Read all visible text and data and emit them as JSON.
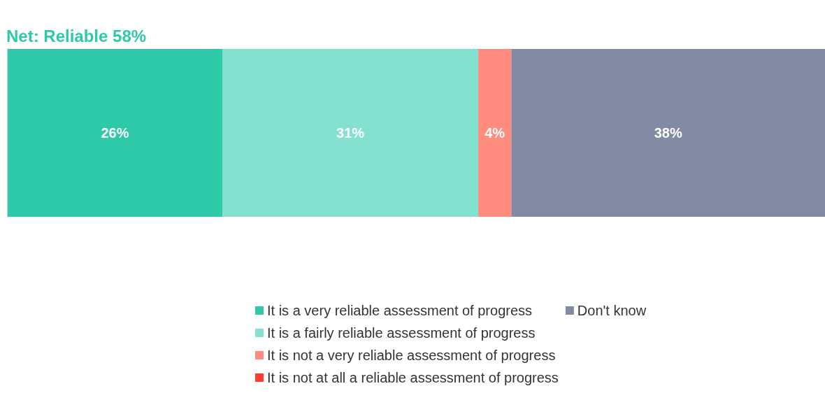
{
  "chart_data": {
    "type": "bar",
    "orientation": "horizontal",
    "stacked": true,
    "title": "Net: Reliable 58%",
    "categories": [
      null
    ],
    "legend": "bottom",
    "series": [
      {
        "name": "It is a very reliable assessment of progress",
        "color": "#2ec9a6",
        "values": [
          26
        ],
        "value_labels": [
          "26%"
        ]
      },
      {
        "name": "It is a fairly reliable assessment of progress",
        "color": "#84e1cf",
        "values": [
          31
        ],
        "value_labels": [
          "31%"
        ]
      },
      {
        "name": "It is not a very reliable assessment of progress",
        "color": "#ff8c7e",
        "values": [
          4
        ],
        "value_labels": [
          "4%"
        ]
      },
      {
        "name": "It is not at all a reliable assessment of progress",
        "color": "#ff3b2b",
        "values": [
          0
        ],
        "value_labels": [
          null
        ]
      },
      {
        "name": "Don't know",
        "color": "#828ba3",
        "values": [
          38
        ],
        "value_labels": [
          "38%"
        ]
      }
    ]
  }
}
